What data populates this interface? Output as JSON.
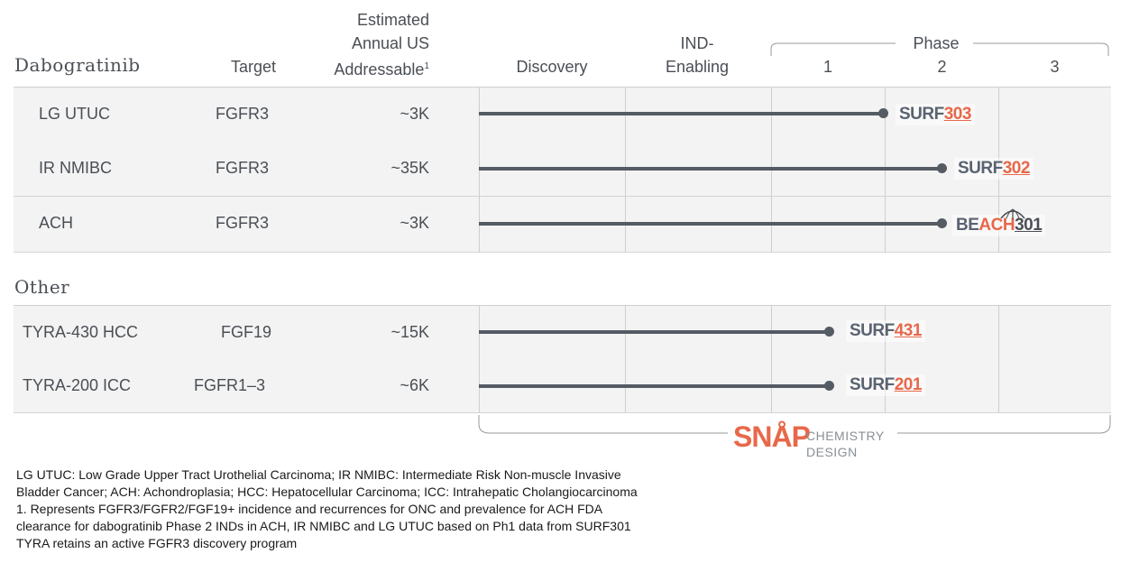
{
  "headers": {
    "group1": "Dabogratinib",
    "target": "Target",
    "addressable_line1": "Estimated",
    "addressable_line2": "Annual US",
    "addressable_line3": "Addressable",
    "addressable_sup": "1",
    "discovery": "Discovery",
    "ind_line1": "IND-",
    "ind_line2": "Enabling",
    "phase": "Phase",
    "phase1": "1",
    "phase2": "2",
    "phase3": "3"
  },
  "group2_title": "Other",
  "rows": [
    {
      "indication": "LG UTUC",
      "target": "FGFR3",
      "addressable": "~3K",
      "progress_phase": 1.55,
      "trial": {
        "prefix": "SURF",
        "number": "303"
      }
    },
    {
      "indication": "IR NMIBC",
      "target": "FGFR3",
      "addressable": "~35K",
      "progress_phase": 2.05,
      "trial": {
        "prefix": "SURF",
        "number": "302"
      }
    },
    {
      "indication": "ACH",
      "target": "FGFR3",
      "addressable": "~3K",
      "progress_phase": 2.05,
      "trial": {
        "prefix_a": "BE",
        "prefix_b": "ACH",
        "number": "301"
      }
    },
    {
      "indication": "TYRA-430 HCC",
      "target": "FGF19",
      "addressable": "~15K",
      "progress_phase": 1.05,
      "trial": {
        "prefix": "SURF",
        "number": "431"
      }
    },
    {
      "indication": "TYRA-200 ICC",
      "target": "FGFR1–3",
      "addressable": "~6K",
      "progress_phase": 1.05,
      "trial": {
        "prefix": "SURF",
        "number": "201"
      }
    }
  ],
  "snap": {
    "logo": "SNÅP",
    "line1": "CHEMISTRY",
    "line2": "DESIGN"
  },
  "colors": {
    "accent": "#e8684a",
    "bar": "#555b63",
    "row_bg": "#f3f3f3"
  },
  "footnotes": [
    "LG UTUC: Low Grade Upper Tract Urothelial Carcinoma; IR NMIBC: Intermediate Risk Non-muscle Invasive",
    "Bladder Cancer; ACH: Achondroplasia; HCC: Hepatocellular Carcinoma; ICC: Intrahepatic Cholangiocarcinoma",
    "1. Represents FGFR3/FGFR2/FGF19+ incidence and recurrences for ONC and prevalence for ACH FDA",
    "clearance for dabogratinib Phase 2 INDs in ACH, IR NMIBC and LG UTUC based on Ph1 data from SURF301",
    "TYRA retains an active FGFR3 discovery program"
  ]
}
